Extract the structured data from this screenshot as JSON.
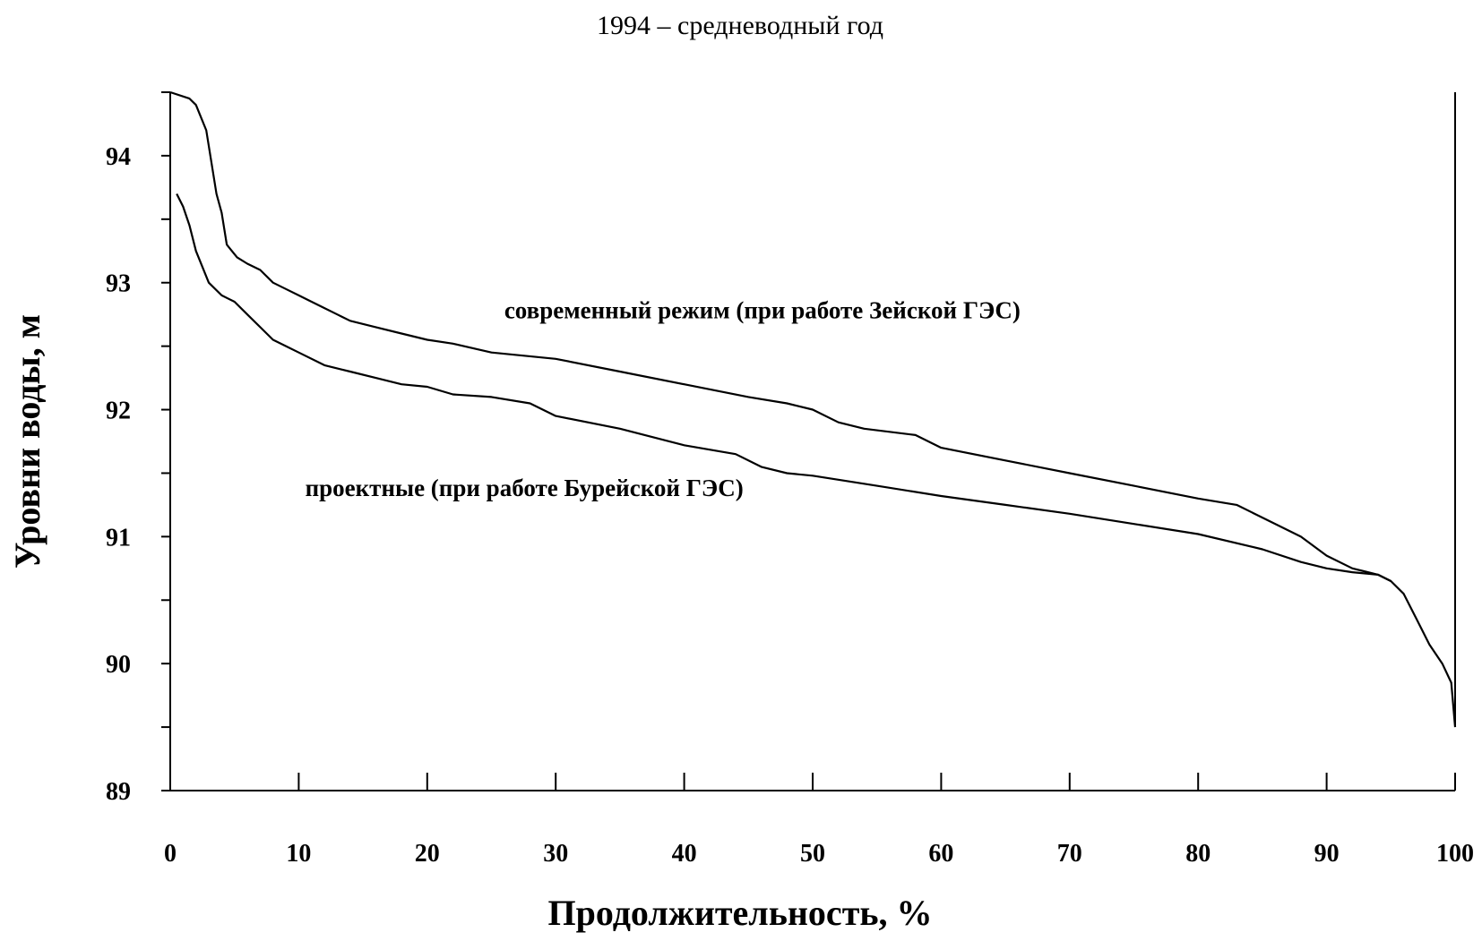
{
  "chart_data": {
    "type": "line",
    "title": "1994 – средневодный год",
    "xlabel": "Продолжительность,  %",
    "ylabel": "Уровни воды, м",
    "xlim": [
      0,
      100
    ],
    "ylim": [
      89,
      94.5
    ],
    "x_ticks": [
      0,
      10,
      20,
      30,
      40,
      50,
      60,
      70,
      80,
      90,
      100
    ],
    "y_ticks": [
      89,
      90,
      91,
      92,
      93,
      94
    ],
    "y_minor_ticks": [
      89.5,
      90.5,
      91.5,
      92.5,
      93.5,
      94.5
    ],
    "grid": false,
    "annotations": [
      {
        "text": "современный режим (при работе Зейской ГЭС)",
        "x": 26,
        "y": 92.72
      },
      {
        "text": "проектные (при работе Бурейской ГЭС)",
        "x": 10.5,
        "y": 91.32
      }
    ],
    "series": [
      {
        "x": [
          0,
          1.5,
          2,
          2.8,
          3.2,
          3.6,
          4,
          4.4,
          4.8,
          5.2,
          6,
          7,
          8,
          9,
          10,
          11,
          12,
          13,
          14,
          16,
          18,
          20,
          22,
          25,
          30,
          35,
          40,
          45,
          48,
          50,
          52,
          54,
          58,
          60,
          65,
          70,
          75,
          80,
          83,
          85,
          88,
          90,
          92,
          94,
          95,
          96,
          97,
          98,
          99,
          99.7,
          100
        ],
        "y": [
          94.5,
          94.45,
          94.4,
          94.2,
          93.95,
          93.7,
          93.55,
          93.3,
          93.25,
          93.2,
          93.15,
          93.1,
          93.0,
          92.95,
          92.9,
          92.85,
          92.8,
          92.75,
          92.7,
          92.65,
          92.6,
          92.55,
          92.52,
          92.45,
          92.4,
          92.3,
          92.2,
          92.1,
          92.05,
          92.0,
          91.9,
          91.85,
          91.8,
          91.7,
          91.6,
          91.5,
          91.4,
          91.3,
          91.25,
          91.15,
          91.0,
          90.85,
          90.75,
          90.7,
          90.65,
          90.55,
          90.35,
          90.15,
          90.0,
          89.85,
          89.5
        ]
      },
      {
        "x": [
          0.5,
          1,
          1.5,
          2,
          3,
          4,
          5,
          6,
          7,
          8,
          9,
          10,
          12,
          14,
          16,
          18,
          20,
          22,
          25,
          28,
          30,
          35,
          40,
          44,
          46,
          48,
          50,
          55,
          60,
          65,
          70,
          75,
          80,
          85,
          88,
          90,
          92,
          94,
          95
        ],
        "y": [
          93.7,
          93.6,
          93.45,
          93.25,
          93.0,
          92.9,
          92.85,
          92.75,
          92.65,
          92.55,
          92.5,
          92.45,
          92.35,
          92.3,
          92.25,
          92.2,
          92.18,
          92.12,
          92.1,
          92.05,
          91.95,
          91.85,
          91.72,
          91.65,
          91.55,
          91.5,
          91.48,
          91.4,
          91.32,
          91.25,
          91.18,
          91.1,
          91.02,
          90.9,
          90.8,
          90.75,
          90.72,
          90.7,
          90.65
        ]
      }
    ]
  }
}
